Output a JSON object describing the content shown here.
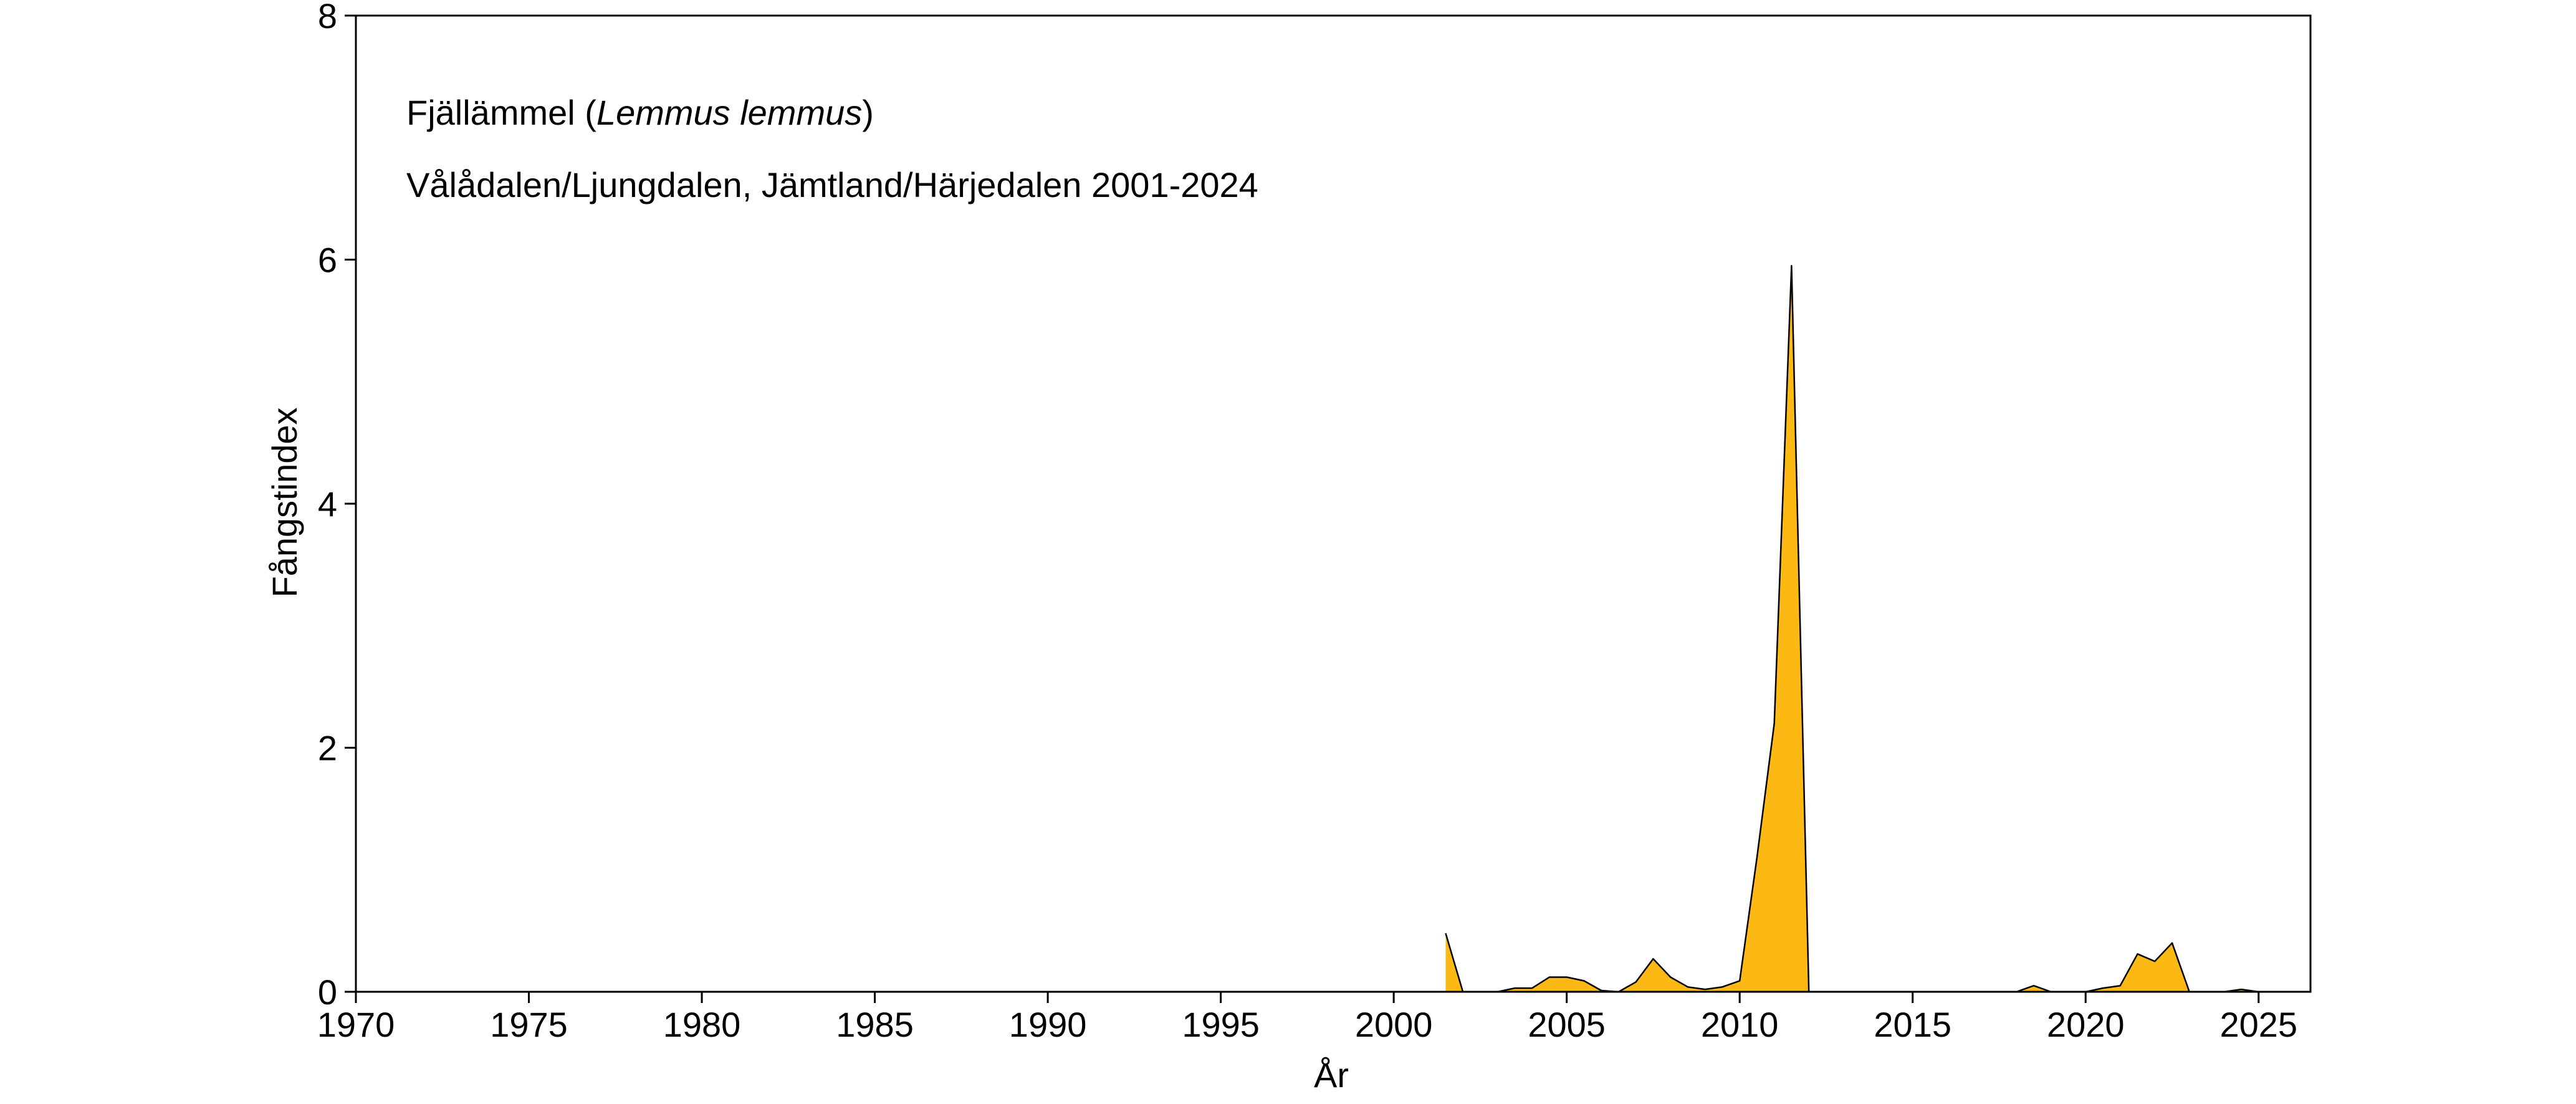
{
  "chart_data": {
    "type": "area",
    "title": "",
    "xlabel": "År",
    "ylabel": "Fångstindex",
    "xlim": [
      1970,
      2026.5
    ],
    "ylim": [
      0,
      8
    ],
    "xticks": [
      1970,
      1975,
      1980,
      1985,
      1990,
      1995,
      2000,
      2005,
      2010,
      2015,
      2020,
      2025
    ],
    "xtick_labels": [
      "1970",
      "1975",
      "1980",
      "1985",
      "1990",
      "1995",
      "2000",
      "2005",
      "2010",
      "2015",
      "2020",
      "2025"
    ],
    "yticks": [
      0,
      2,
      4,
      6,
      8
    ],
    "ytick_labels": [
      "0",
      "2",
      "4",
      "6",
      "8"
    ],
    "grid": false,
    "legend": "none",
    "annotations": {
      "species_label": "Fjällämmel (",
      "species_latin": "Lemmus lemmus",
      "species_close": ")",
      "location": "Vålådalen/Ljungdalen, Jämtland/Härjedalen 2001-2024"
    },
    "colors": {
      "fill": "#FDB913",
      "stroke": "#000000",
      "axis": "#000000"
    },
    "series": [
      {
        "x": [
          2001.5,
          2002.0,
          2002.5,
          2003.0,
          2003.5,
          2004.0,
          2004.5,
          2005.0,
          2005.5,
          2006.0,
          2006.5,
          2007.0,
          2007.5,
          2008.0,
          2008.5,
          2009.0,
          2009.5,
          2010.0,
          2010.5,
          2011.0,
          2011.5,
          2012.0,
          2012.5,
          2013.0,
          2013.5,
          2014.0,
          2014.5,
          2015.0,
          2015.5,
          2016.0,
          2016.5,
          2017.0,
          2017.5,
          2018.0,
          2018.5,
          2019.0,
          2019.5,
          2020.0,
          2020.5,
          2021.0,
          2021.5,
          2022.0,
          2022.5,
          2023.0,
          2023.5,
          2024.0,
          2024.5,
          2025.0
        ],
        "values": [
          0.48,
          0.0,
          0.0,
          0.0,
          0.03,
          0.03,
          0.12,
          0.12,
          0.09,
          0.01,
          0.0,
          0.08,
          0.27,
          0.12,
          0.04,
          0.02,
          0.04,
          0.09,
          1.1,
          2.2,
          5.95,
          0.0,
          0.0,
          0.0,
          0.0,
          0.0,
          0.0,
          0.0,
          0.0,
          0.0,
          0.0,
          0.0,
          0.0,
          0.0,
          0.05,
          0.0,
          0.0,
          0.0,
          0.03,
          0.05,
          0.31,
          0.25,
          0.4,
          0.0,
          0.0,
          0.0,
          0.02,
          0.0
        ]
      }
    ]
  }
}
